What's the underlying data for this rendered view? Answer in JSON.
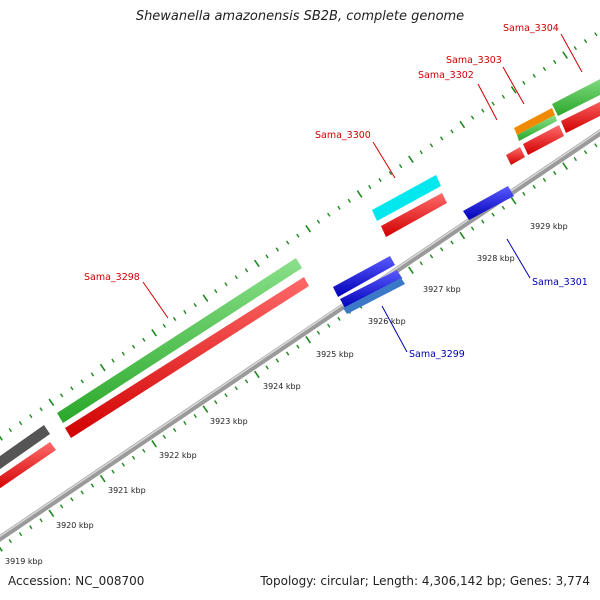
{
  "title": "Shewanella amazonensis SB2B, complete genome",
  "footer": {
    "accession": "Accession: NC_008700",
    "summary": "Topology: circular; Length: 4,306,142 bp; Genes: 3,774"
  },
  "colors": {
    "backbone": "#888888",
    "ticks": "#1f8a1f",
    "cds_forward": "#ff1a1a",
    "cds_reverse": "#1a1aee",
    "gene_forward": "#3cc83c",
    "gene_reverse": "#3c78c8",
    "gray_feature": "#555555",
    "cyan_feature": "#00e8ee",
    "orange_feature": "#f08a00",
    "label_forward": "#d00000",
    "label_reverse": "#0000b0"
  },
  "axis": {
    "unit": "kbp",
    "tick_labels": [
      "3919 kbp",
      "3920 kbp",
      "3921 kbp",
      "3922 kbp",
      "3923 kbp",
      "3924 kbp",
      "3925 kbp",
      "3926 kbp",
      "3927 kbp",
      "3928 kbp",
      "3929 kbp"
    ],
    "tick_values_kbp": [
      3919,
      3920,
      3921,
      3922,
      3923,
      3924,
      3925,
      3926,
      3927,
      3928,
      3929
    ]
  },
  "features": [
    {
      "id": "f-gray",
      "label": "",
      "strand": "+",
      "type": "gene",
      "color": "gray_feature",
      "start_kbp": 3918.4,
      "end_kbp": 3919.2
    },
    {
      "id": "f-red-a",
      "label": "",
      "strand": "+",
      "type": "cds",
      "color": "cds_forward",
      "start_kbp": 3918.4,
      "end_kbp": 3919.2
    },
    {
      "id": "Sama_3298",
      "label": "Sama_3298",
      "strand": "+",
      "type": "gene",
      "color": "gene_forward",
      "start_kbp": 3919.5,
      "end_kbp": 3924.3
    },
    {
      "id": "Sama_3298-cds",
      "label": "",
      "strand": "+",
      "type": "cds",
      "color": "cds_forward",
      "start_kbp": 3919.5,
      "end_kbp": 3924.3
    },
    {
      "id": "Sama_3299",
      "label": "Sama_3299",
      "strand": "-",
      "type": "cds",
      "color": "cds_reverse",
      "start_kbp": 3925.2,
      "end_kbp": 3926.5
    },
    {
      "id": "Sama_3300",
      "label": "Sama_3300",
      "strand": "+",
      "type": "cds",
      "color": "cyan_feature",
      "start_kbp": 3926.2,
      "end_kbp": 3927.3
    },
    {
      "id": "Sama_3301",
      "label": "Sama_3301",
      "strand": "-",
      "type": "cds",
      "color": "cds_reverse",
      "start_kbp": 3927.9,
      "end_kbp": 3928.8
    },
    {
      "id": "Sama_3302",
      "label": "Sama_3302",
      "strand": "+",
      "type": "cds",
      "color": "cds_forward",
      "start_kbp": 3928.5,
      "end_kbp": 3928.9
    },
    {
      "id": "Sama_3303",
      "label": "Sama_3303",
      "strand": "+",
      "type": "cds",
      "color": "orange_feature",
      "start_kbp": 3929.1,
      "end_kbp": 3929.8
    },
    {
      "id": "Sama_3304",
      "label": "Sama_3304",
      "strand": "+",
      "type": "gene",
      "color": "gene_forward",
      "start_kbp": 3929.8,
      "end_kbp": 3931.0
    }
  ],
  "labels": [
    {
      "id": "Sama_3298",
      "text": "Sama_3298",
      "strand": "+"
    },
    {
      "id": "Sama_3299",
      "text": "Sama_3299",
      "strand": "-"
    },
    {
      "id": "Sama_3300",
      "text": "Sama_3300",
      "strand": "+"
    },
    {
      "id": "Sama_3301",
      "text": "Sama_3301",
      "strand": "-"
    },
    {
      "id": "Sama_3302",
      "text": "Sama_3302",
      "strand": "+"
    },
    {
      "id": "Sama_3303",
      "text": "Sama_3303",
      "strand": "+"
    },
    {
      "id": "Sama_3304",
      "text": "Sama_3304",
      "strand": "+"
    }
  ]
}
